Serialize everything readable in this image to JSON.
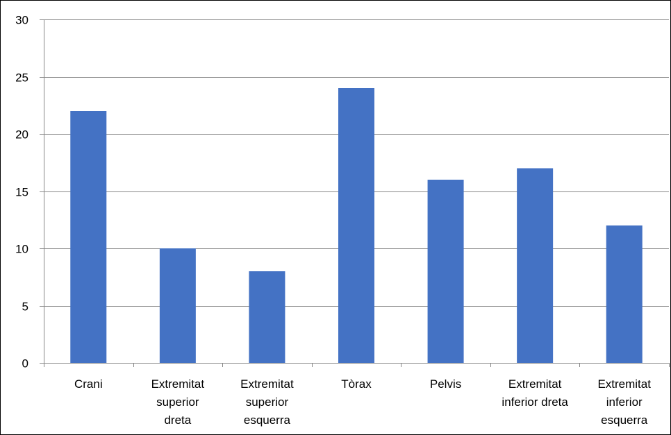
{
  "chart_data": {
    "type": "bar",
    "title": "",
    "xlabel": "",
    "ylabel": "",
    "ylim": [
      0,
      30
    ],
    "yticks": [
      "0",
      "5",
      "10",
      "15",
      "20",
      "25",
      "30"
    ],
    "ytick_values": [
      0,
      5,
      10,
      15,
      20,
      25,
      30
    ],
    "grid": true,
    "legend": "none",
    "bar_color": "#4472C4",
    "categories": [
      [
        "Crani"
      ],
      [
        "Extremitat",
        "superior",
        "dreta"
      ],
      [
        "Extremitat",
        "superior",
        "esquerra"
      ],
      [
        "Tòrax"
      ],
      [
        "Pelvis"
      ],
      [
        "Extremitat",
        "inferior dreta"
      ],
      [
        "Extremitat",
        "inferior",
        "esquerra"
      ]
    ],
    "values": [
      22,
      10,
      8,
      24,
      16,
      17,
      12
    ]
  }
}
